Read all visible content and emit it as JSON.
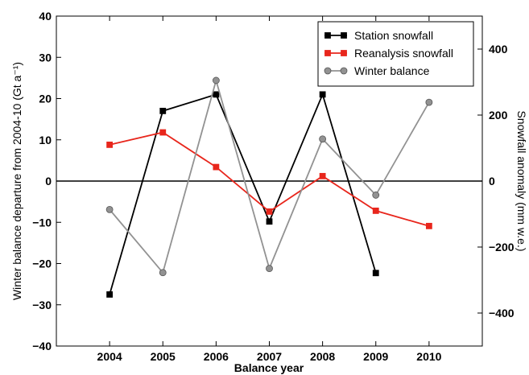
{
  "chart_data": {
    "type": "line",
    "title": "",
    "xlabel": "Balance year",
    "ylabel": "Winter balance departure from 2004-10 (Gt a⁻¹)",
    "ylabel_right": "Snowfall anomaly (mm w.e.)",
    "xlim": [
      2003,
      2011
    ],
    "ylim": [
      -40,
      40
    ],
    "ylim_right": [
      -500,
      500
    ],
    "x_ticks": [
      2004,
      2005,
      2006,
      2007,
      2008,
      2009,
      2010
    ],
    "x_tick_labels": [
      "2004",
      "2005",
      "2006",
      "2007",
      "2008",
      "2009",
      "2010"
    ],
    "y_ticks": [
      -40,
      -30,
      -20,
      -10,
      0,
      10,
      20,
      30,
      40
    ],
    "y_tick_labels": [
      "−40",
      "−30",
      "−20",
      "−10",
      "0",
      "10",
      "20",
      "30",
      "40"
    ],
    "y_ticks_right": [
      -400,
      -200,
      0,
      200,
      400
    ],
    "y_tick_labels_right": [
      "−400",
      "−200",
      "0",
      "200",
      "400"
    ],
    "zero_line": true,
    "grid": false,
    "legend_position": "top-right",
    "series": [
      {
        "name": "Station snowfall",
        "axis": "left",
        "color": "#000000",
        "marker": "square",
        "x": [
          2004,
          2005,
          2006,
          2007,
          2008,
          2009
        ],
        "y": [
          -27.5,
          17,
          21,
          -9.8,
          21,
          -22.3
        ]
      },
      {
        "name": "Reanalysis snowfall",
        "axis": "left",
        "color": "#e8261c",
        "marker": "square",
        "x": [
          2004,
          2005,
          2006,
          2007,
          2008,
          2009,
          2010
        ],
        "y": [
          8.8,
          11.8,
          3.4,
          -7.4,
          1.2,
          -7.2,
          -10.9
        ]
      },
      {
        "name": "Winter balance",
        "axis": "left",
        "color": "#929292",
        "marker": "circle",
        "x": [
          2004,
          2005,
          2006,
          2007,
          2008,
          2009,
          2010
        ],
        "y": [
          -6.9,
          -22.2,
          24.4,
          -21.2,
          10.2,
          -3.4,
          19.1
        ]
      }
    ]
  }
}
